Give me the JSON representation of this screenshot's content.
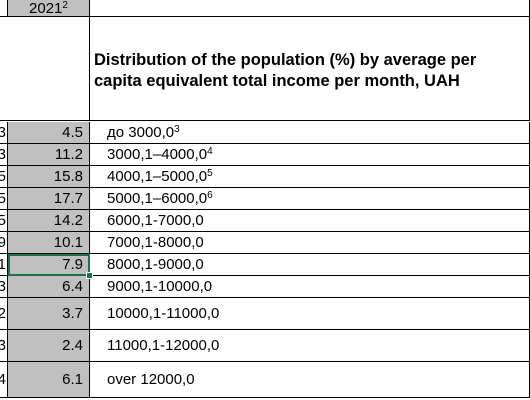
{
  "header": {
    "year": "2021",
    "year_sup": "2",
    "title": "Distribution of the population (%) by average per capita equivalent total income per month, UAH"
  },
  "rows": [
    {
      "left": "3",
      "value": "4.5",
      "label": "до 3000,0",
      "sup": "3"
    },
    {
      "left": "3",
      "value": "11.2",
      "label": "3000,1–4000,0",
      "sup": "4"
    },
    {
      "left": "5",
      "value": "15.8",
      "label": "4000,1–5000,0",
      "sup": "5"
    },
    {
      "left": "5",
      "value": "17.7",
      "label": "5000,1–6000,0",
      "sup": "6"
    },
    {
      "left": "5",
      "value": "14.2",
      "label": "6000,1-7000,0",
      "sup": ""
    },
    {
      "left": "9",
      "value": "10.1",
      "label": "7000,1-8000,0",
      "sup": ""
    },
    {
      "left": "1",
      "value": "7.9",
      "label": "8000,1-9000,0",
      "sup": ""
    },
    {
      "left": "3",
      "value": "6.4",
      "label": "9000,1-10000,0",
      "sup": ""
    },
    {
      "left": "2",
      "value": "3.7",
      "label": "10000,1-11000,0",
      "sup": ""
    },
    {
      "left": "3",
      "value": "2.4",
      "label": "11000,1-12000,0",
      "sup": ""
    },
    {
      "left": "4",
      "value": "6.1",
      "label": "over 12000,0",
      "sup": ""
    }
  ],
  "selected_row": 6,
  "colors": {
    "value_fill": "#c0c0c0",
    "selection": "#1e7145"
  }
}
